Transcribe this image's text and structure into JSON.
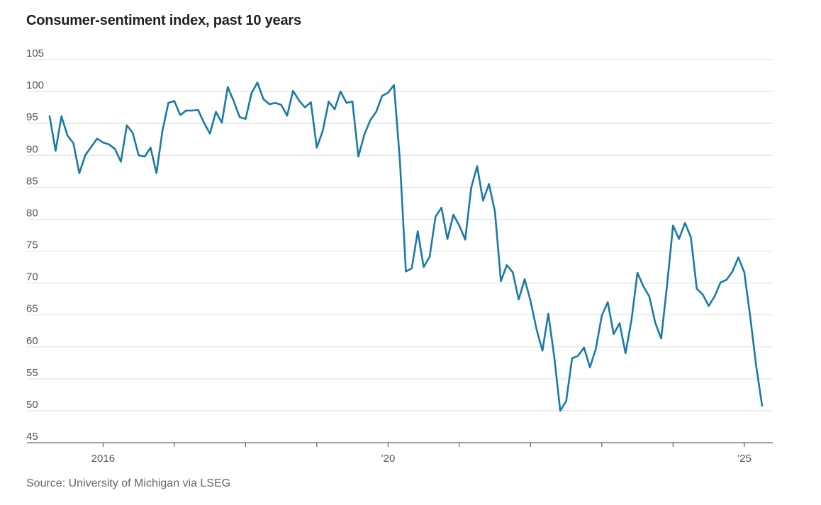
{
  "title": "Consumer-sentiment index, past 10 years",
  "source": "Source: University of Michigan via LSEG",
  "colors": {
    "line": "#1a7aa6",
    "grid": "#dddddd",
    "axis": "#444444"
  },
  "chart_data": {
    "type": "line",
    "title": "Consumer-sentiment index, past 10 years",
    "xlabel": "",
    "ylabel": "",
    "ylim": [
      45,
      105
    ],
    "yticks": [
      45,
      50,
      55,
      60,
      65,
      70,
      75,
      80,
      85,
      90,
      95,
      100,
      105
    ],
    "xticks": [
      {
        "label": "2016",
        "x": 2016
      },
      {
        "label": "",
        "x": 2017
      },
      {
        "label": "",
        "x": 2018
      },
      {
        "label": "",
        "x": 2019
      },
      {
        "label": "’20",
        "x": 2020
      },
      {
        "label": "",
        "x": 2021
      },
      {
        "label": "",
        "x": 2022
      },
      {
        "label": "",
        "x": 2023
      },
      {
        "label": "",
        "x": 2024
      },
      {
        "label": "’25",
        "x": 2025
      }
    ],
    "xlim": [
      2015.25,
      2025.4
    ],
    "x_start": 2015.25,
    "x_step_months": 1,
    "grid": true,
    "series": [
      {
        "values": [
          96.1,
          90.7,
          96.1,
          93.1,
          91.9,
          87.2,
          90.0,
          91.3,
          92.6,
          92.0,
          91.7,
          91.0,
          89.0,
          94.7,
          93.5,
          90.0,
          89.8,
          91.2,
          87.2,
          93.8,
          98.2,
          98.5,
          96.3,
          97.0,
          97.0,
          97.1,
          95.1,
          93.4,
          96.8,
          95.1,
          100.7,
          98.5,
          96.0,
          95.7,
          99.7,
          101.4,
          98.8,
          98.0,
          98.2,
          97.9,
          96.2,
          100.1,
          98.6,
          97.5,
          98.3,
          91.2,
          93.8,
          98.4,
          97.2,
          100.0,
          98.2,
          98.4,
          89.8,
          93.2,
          95.5,
          96.8,
          99.3,
          99.8,
          101.0,
          89.1,
          71.8,
          72.3,
          78.1,
          72.5,
          74.1,
          80.4,
          81.8,
          76.9,
          80.7,
          79.0,
          76.8,
          84.9,
          88.3,
          82.9,
          85.5,
          81.2,
          70.3,
          72.8,
          71.7,
          67.4,
          70.6,
          67.2,
          62.8,
          59.4,
          65.2,
          58.4,
          50.0,
          51.5,
          58.2,
          58.6,
          59.9,
          56.8,
          59.7,
          64.9,
          67.0,
          62.0,
          63.7,
          59.0,
          64.2,
          71.6,
          69.5,
          67.9,
          63.8,
          61.3,
          69.7,
          79.0,
          76.9,
          79.4,
          77.2,
          69.1,
          68.2,
          66.4,
          67.9,
          70.1,
          70.5,
          71.8,
          74.0,
          71.7,
          64.7,
          57.0,
          50.8
        ]
      }
    ]
  }
}
